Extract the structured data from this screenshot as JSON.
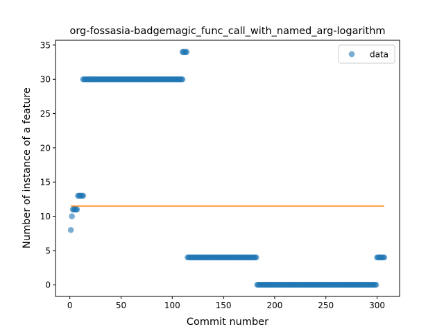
{
  "chart_data": {
    "type": "scatter",
    "title": "org-fossasia-badgemagic_func_call_with_named_arg-logarithm",
    "xlabel": "Commit number",
    "ylabel": "Number of instance of a feature",
    "xlim": [
      -14,
      322
    ],
    "ylim": [
      -1.7,
      35.7
    ],
    "xticks": [
      0,
      50,
      100,
      150,
      200,
      250,
      300
    ],
    "yticks": [
      0,
      5,
      10,
      15,
      20,
      25,
      30,
      35
    ],
    "grid": false,
    "legend": {
      "position": "top-right",
      "entries": [
        "data"
      ]
    },
    "series": [
      {
        "name": "data",
        "kind": "scatter",
        "color": "#1f77b4",
        "alpha": 0.6,
        "runs": [
          {
            "x_start": 1,
            "x_end": 1,
            "y": 8
          },
          {
            "x_start": 2,
            "x_end": 2,
            "y": 10
          },
          {
            "x_start": 3,
            "x_end": 7,
            "y": 11
          },
          {
            "x_start": 8,
            "x_end": 13,
            "y": 13
          },
          {
            "x_start": 13,
            "x_end": 110,
            "y": 30
          },
          {
            "x_start": 110,
            "x_end": 114,
            "y": 34
          },
          {
            "x_start": 115,
            "x_end": 182,
            "y": 4
          },
          {
            "x_start": 183,
            "x_end": 299,
            "y": 0
          },
          {
            "x_start": 300,
            "x_end": 307,
            "y": 4
          }
        ]
      },
      {
        "kind": "line",
        "color": "#ff7f0e",
        "x": [
          1,
          307
        ],
        "y": [
          11.5,
          11.5
        ]
      }
    ]
  }
}
